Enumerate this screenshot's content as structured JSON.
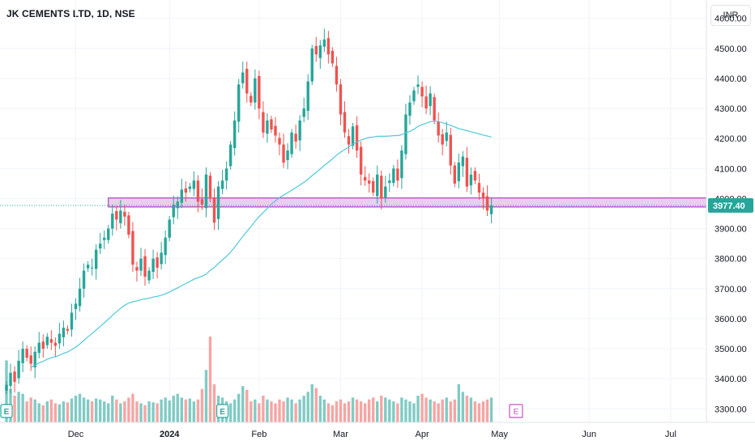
{
  "header": {
    "symbol_title": "JK CEMENTS LTD, 1D, NSE",
    "currency": "INR"
  },
  "colors": {
    "up": "#26a69a",
    "down": "#ef5350",
    "vol_up": "#80cbc4",
    "vol_down": "#f4a6a4",
    "ma": "#4dc9d9",
    "zone_fill": "#e1bee7",
    "zone_stroke": "#9c27b0",
    "last_price_bg": "#26a69a",
    "grid": "#f0f3fa",
    "axis_text": "#131722"
  },
  "events": {
    "earnings_label": "E",
    "dividend_label": "E"
  },
  "chart_data": {
    "type": "candlestick",
    "title": "JK CEMENTS LTD, 1D, NSE",
    "ylabel": "INR",
    "ylim": [
      3255,
      4645
    ],
    "y_ticks": [
      3300,
      3400,
      3500,
      3600,
      3700,
      3800,
      3900,
      4000,
      4100,
      4200,
      4300,
      4400,
      4500,
      4600
    ],
    "y_tick_labels": [
      "3300.00",
      "3400.00",
      "3500.00",
      "3600.00",
      "3700.00",
      "3800.00",
      "3900.00",
      "4000.00",
      "4100.00",
      "4200.00",
      "4300.00",
      "4400.00",
      "4500.00",
      "4600.00"
    ],
    "x_labels": [
      {
        "label": "Dec",
        "index": 17
      },
      {
        "label": "2024",
        "index": 40
      },
      {
        "label": "Feb",
        "index": 62
      },
      {
        "label": "Mar",
        "index": 82
      },
      {
        "label": "Apr",
        "index": 102
      },
      {
        "label": "May",
        "index": 121
      },
      {
        "label": "Jun",
        "index": 143
      },
      {
        "label": "Jul",
        "index": 163
      }
    ],
    "last_price": 3977.4,
    "last_price_label": "3977.40",
    "support_zone": [
      3972,
      4002
    ],
    "closes": [
      3380,
      3420,
      3390,
      3460,
      3500,
      3470,
      3450,
      3490,
      3520,
      3500,
      3540,
      3520,
      3510,
      3550,
      3570,
      3560,
      3620,
      3650,
      3700,
      3760,
      3780,
      3770,
      3830,
      3850,
      3870,
      3900,
      3950,
      3930,
      3960,
      3940,
      3880,
      3780,
      3760,
      3800,
      3740,
      3760,
      3800,
      3770,
      3820,
      3870,
      3930,
      3980,
      3990,
      4030,
      4020,
      4040,
      4060,
      3990,
      3980,
      4080,
      4000,
      3920,
      4040,
      4060,
      4100,
      4180,
      4260,
      4380,
      4420,
      4350,
      4320,
      4400,
      4300,
      4220,
      4260,
      4230,
      4210,
      4180,
      4120,
      4160,
      4220,
      4190,
      4260,
      4300,
      4390,
      4500,
      4480,
      4510,
      4530,
      4480,
      4450,
      4380,
      4280,
      4220,
      4180,
      4240,
      4160,
      4080,
      4060,
      4050,
      4020,
      4080,
      4000,
      4040,
      4060,
      4100,
      4060,
      4160,
      4280,
      4320,
      4360,
      4380,
      4340,
      4300,
      4350,
      4260,
      4210,
      4180,
      4220,
      4110,
      4050,
      4120,
      4140,
      4040,
      4080,
      4060,
      4020,
      4000,
      3960,
      3977.4
    ],
    "volumes": [
      65,
      35,
      28,
      32,
      30,
      22,
      26,
      24,
      20,
      18,
      22,
      24,
      20,
      19,
      22,
      21,
      25,
      28,
      30,
      26,
      24,
      22,
      25,
      24,
      22,
      20,
      28,
      24,
      20,
      22,
      26,
      30,
      22,
      20,
      18,
      22,
      21,
      20,
      24,
      26,
      23,
      28,
      30,
      26,
      24,
      25,
      22,
      24,
      35,
      55,
      90,
      40,
      28,
      26,
      22,
      20,
      24,
      30,
      38,
      34,
      22,
      24,
      20,
      28,
      24,
      22,
      20,
      24,
      22,
      26,
      24,
      20,
      24,
      28,
      32,
      40,
      36,
      28,
      24,
      20,
      18,
      22,
      24,
      20,
      22,
      26,
      24,
      22,
      20,
      24,
      26,
      22,
      28,
      26,
      24,
      22,
      20,
      26,
      24,
      22,
      20,
      28,
      30,
      26,
      24,
      22,
      20,
      24,
      26,
      22,
      24,
      40,
      32,
      28,
      26,
      22,
      20,
      22,
      24,
      26
    ],
    "ma_period": 50
  }
}
